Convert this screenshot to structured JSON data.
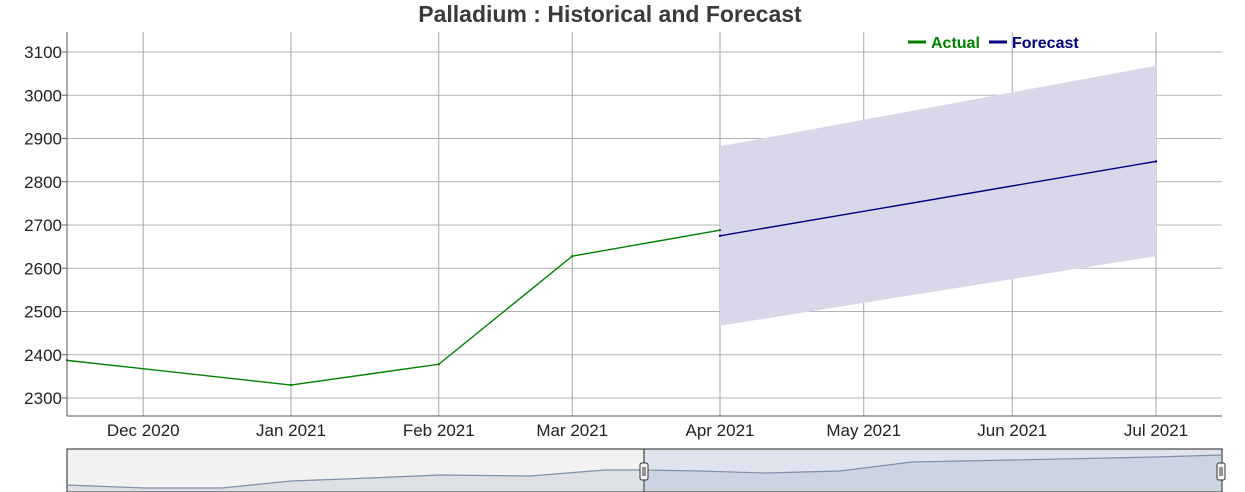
{
  "chart_data": {
    "type": "line",
    "title": "Palladium : Historical and Forecast",
    "xlabel": "",
    "ylabel": "",
    "ylim": [
      2260,
      3140
    ],
    "y_ticks": [
      "2300",
      "2400",
      "2500",
      "2600",
      "2700",
      "2800",
      "2900",
      "3000",
      "3100"
    ],
    "x_ticks": [
      "Dec 2020",
      "Jan 2021",
      "Feb 2021",
      "Mar 2021",
      "Apr 2021",
      "May 2021",
      "Jun 2021",
      "Jul 2021"
    ],
    "grid": true,
    "legend_position": "top-right",
    "series": [
      {
        "name": "Actual",
        "color": "#008000",
        "points": [
          {
            "x": "2020-11-15",
            "y": 2387
          },
          {
            "x": "2021-01-01",
            "y": 2330
          },
          {
            "x": "2021-02-01",
            "y": 2378
          },
          {
            "x": "2021-03-01",
            "y": 2628
          },
          {
            "x": "2021-04-01",
            "y": 2688
          }
        ]
      },
      {
        "name": "Forecast",
        "color": "#000080",
        "points": [
          {
            "x": "2021-04-01",
            "y": 2675
          },
          {
            "x": "2021-07-01",
            "y": 2847
          }
        ]
      }
    ],
    "confidence_band": {
      "color": "#d8d8ea",
      "points": [
        {
          "x": "2021-04-01",
          "lower": 2467,
          "upper": 2882
        },
        {
          "x": "2021-07-01",
          "lower": 2628,
          "upper": 3068
        }
      ]
    },
    "navigator": {
      "series_color": "#8090a8",
      "selected_fill": "#dfe3ee",
      "unselected_fill": "#f2f2f2"
    }
  }
}
